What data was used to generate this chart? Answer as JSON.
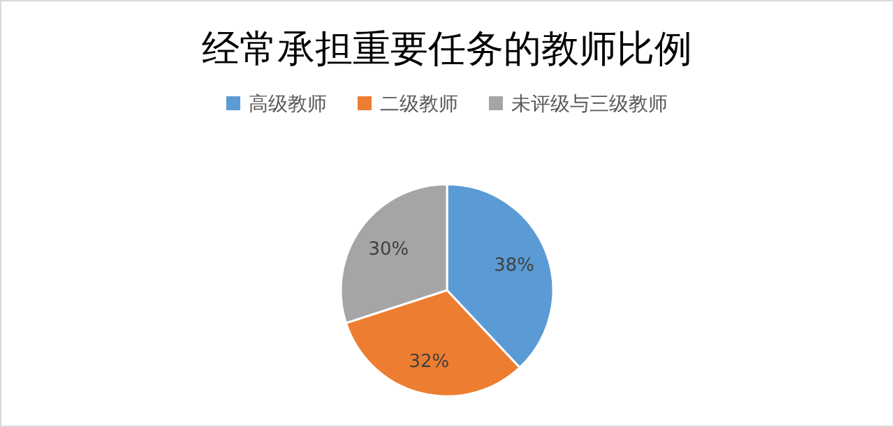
{
  "chart_data": {
    "type": "pie",
    "title": "经常承担重要任务的教师比例",
    "categories": [
      "高级教师",
      "二级教师",
      "未评级与三级教师"
    ],
    "values": [
      38,
      32,
      30
    ],
    "colors": [
      "#5b9bd5",
      "#ed7d31",
      "#a5a5a5"
    ],
    "value_labels": [
      "38%",
      "32%",
      "30%"
    ],
    "legend": "top"
  }
}
